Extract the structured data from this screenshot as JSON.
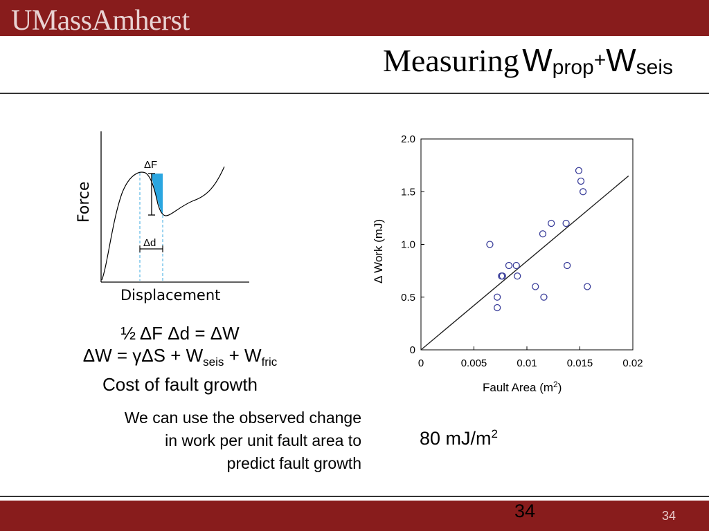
{
  "header": {
    "logo_text": "UMassAmherst"
  },
  "slide": {
    "title_word": "Measuring",
    "title_w1": "W",
    "title_sub1": "prop",
    "title_sup": "+",
    "title_w2": "W",
    "title_sub2": "seis"
  },
  "diagram": {
    "y_label": "Force",
    "x_label": "Displacement",
    "delta_f": "ΔF",
    "delta_d": "Δd",
    "fill_color": "#2aa6e0"
  },
  "equations": {
    "line1": "½ ΔF Δd = ΔW",
    "line2_a": "ΔW =  γΔS + W",
    "line2_sub1": "seis",
    "line2_b": " + W",
    "line2_sub2": "fric",
    "line3": "Cost of fault growth"
  },
  "note": {
    "line1": "We can use the observed change",
    "line2": "in work per unit fault area to",
    "line3": "predict fault growth"
  },
  "rate": {
    "value": "80 mJ/m",
    "sup": "2"
  },
  "footer": {
    "center_number": "34",
    "page_number": "34"
  },
  "chart_data": {
    "type": "scatter",
    "xlabel": "Fault Area (m",
    "xlabel_sup": "2",
    "xlabel_close": ")",
    "ylabel": "Δ Work (mJ)",
    "xlim": [
      0,
      0.02
    ],
    "ylim": [
      0,
      2.0
    ],
    "x_ticks": [
      0,
      0.005,
      0.01,
      0.015,
      0.02
    ],
    "x_tick_labels": [
      "0",
      "0.005",
      "0.01",
      "0.015",
      "0.02"
    ],
    "y_ticks": [
      0,
      0.5,
      1.0,
      1.5,
      2.0
    ],
    "y_tick_labels": [
      "0",
      "0.5",
      "1.0",
      "1.5",
      "2.0"
    ],
    "marker_color": "#3a3e9a",
    "points": [
      {
        "x": 0.0065,
        "y": 1.0
      },
      {
        "x": 0.0072,
        "y": 0.5
      },
      {
        "x": 0.0072,
        "y": 0.4
      },
      {
        "x": 0.0076,
        "y": 0.7
      },
      {
        "x": 0.0077,
        "y": 0.7
      },
      {
        "x": 0.0083,
        "y": 0.8
      },
      {
        "x": 0.009,
        "y": 0.8
      },
      {
        "x": 0.0091,
        "y": 0.7
      },
      {
        "x": 0.0108,
        "y": 0.6
      },
      {
        "x": 0.0115,
        "y": 1.1
      },
      {
        "x": 0.0116,
        "y": 0.5
      },
      {
        "x": 0.0123,
        "y": 1.2
      },
      {
        "x": 0.0137,
        "y": 1.2
      },
      {
        "x": 0.0138,
        "y": 0.8
      },
      {
        "x": 0.0149,
        "y": 1.7
      },
      {
        "x": 0.0151,
        "y": 1.6
      },
      {
        "x": 0.0153,
        "y": 1.5
      },
      {
        "x": 0.0157,
        "y": 0.6
      }
    ],
    "fit_line": [
      {
        "x": 0.0,
        "y": 0.0
      },
      {
        "x": 0.0196,
        "y": 1.65
      }
    ]
  }
}
